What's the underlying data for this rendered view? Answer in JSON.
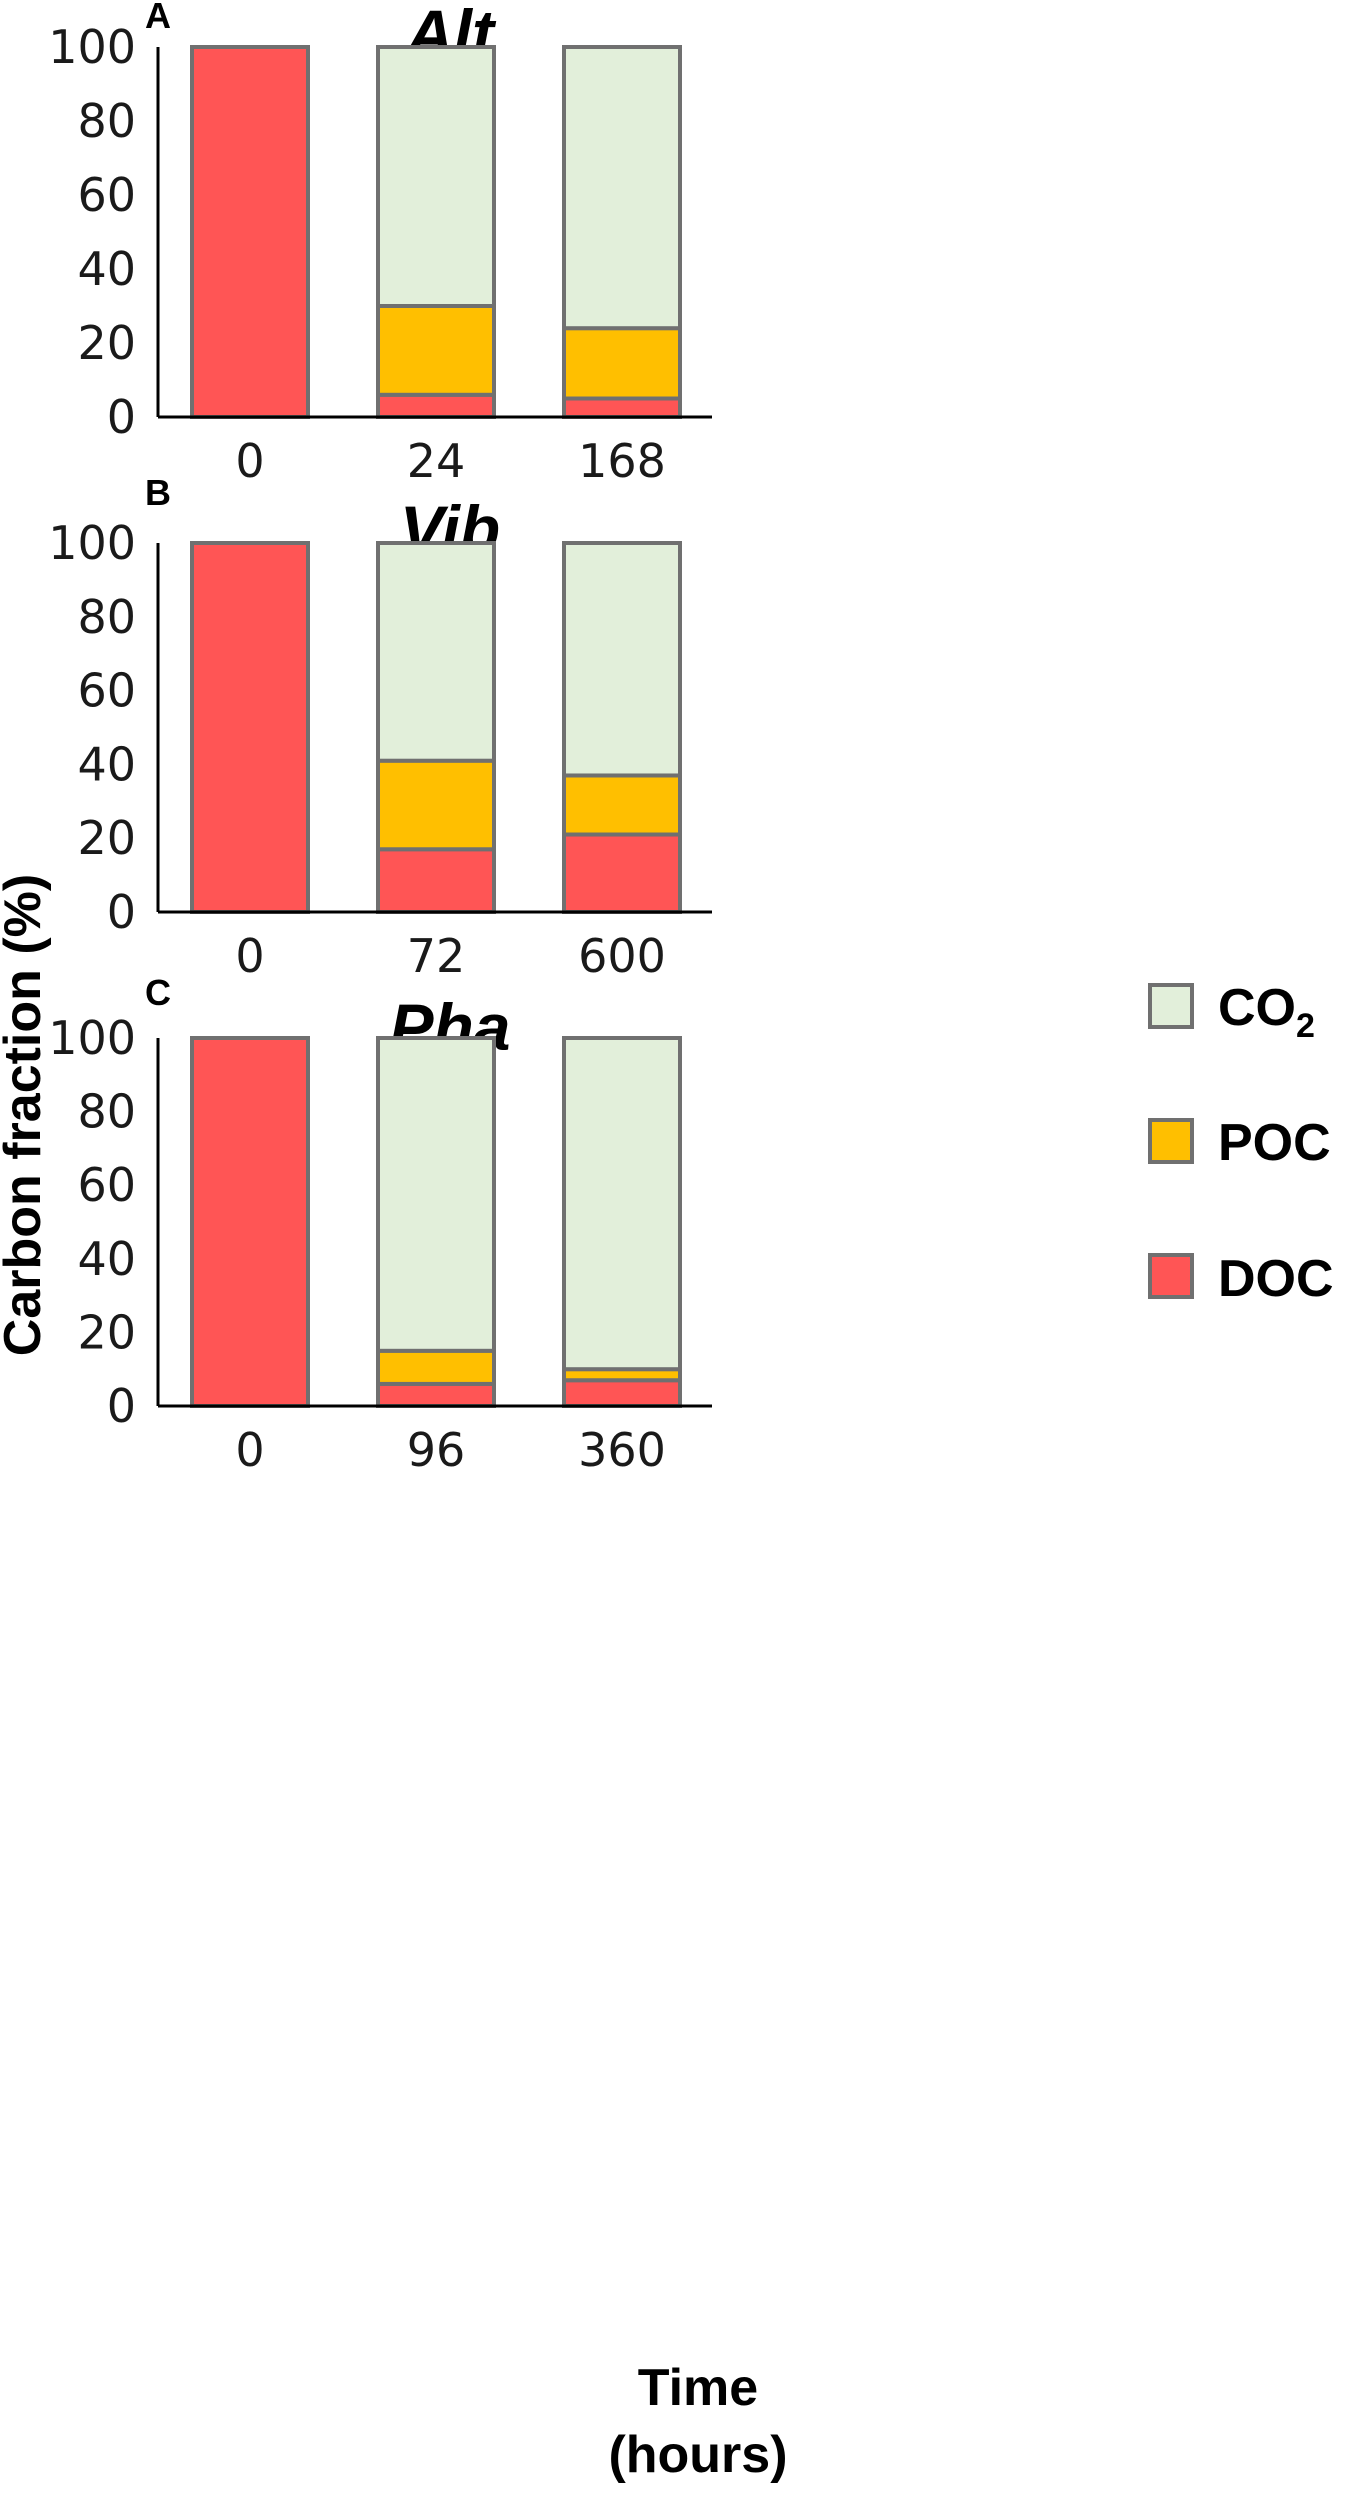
{
  "chart_data": [
    {
      "type": "bar",
      "stacked": true,
      "panel": "A",
      "title": "Alt",
      "categories": [
        "0",
        "24",
        "168"
      ],
      "series": [
        {
          "name": "DOC",
          "values": [
            100,
            6,
            5
          ]
        },
        {
          "name": "POC",
          "values": [
            0,
            24,
            19
          ]
        },
        {
          "name": "CO2",
          "values": [
            0,
            70,
            76
          ]
        }
      ],
      "yticks": [
        "0",
        "20",
        "40",
        "60",
        "80",
        "100"
      ],
      "ylim": [
        0,
        100
      ]
    },
    {
      "type": "bar",
      "stacked": true,
      "panel": "B",
      "title": "Vib",
      "categories": [
        "0",
        "72",
        "600"
      ],
      "series": [
        {
          "name": "DOC",
          "values": [
            100,
            17,
            21
          ]
        },
        {
          "name": "POC",
          "values": [
            0,
            24,
            16
          ]
        },
        {
          "name": "CO2",
          "values": [
            0,
            59,
            63
          ]
        }
      ],
      "yticks": [
        "0",
        "20",
        "40",
        "60",
        "80",
        "100"
      ],
      "ylim": [
        0,
        100
      ]
    },
    {
      "type": "bar",
      "stacked": true,
      "panel": "C",
      "title": "Pha",
      "categories": [
        "0",
        "96",
        "360"
      ],
      "series": [
        {
          "name": "DOC",
          "values": [
            100,
            6,
            7
          ]
        },
        {
          "name": "POC",
          "values": [
            0,
            9,
            3
          ]
        },
        {
          "name": "CO2",
          "values": [
            0,
            85,
            90
          ]
        }
      ],
      "yticks": [
        "0",
        "20",
        "40",
        "60",
        "80",
        "100"
      ],
      "ylim": [
        0,
        100
      ]
    }
  ],
  "ylabel": "Carbon fraction (%)",
  "xlabel_line1": "Time",
  "xlabel_line2": "(hours)",
  "legend": {
    "position": "right",
    "items": [
      {
        "key": "CO2",
        "label_main": "CO",
        "label_sub": "2"
      },
      {
        "key": "POC",
        "label_main": "POC",
        "label_sub": ""
      },
      {
        "key": "DOC",
        "label_main": "DOC",
        "label_sub": ""
      }
    ]
  },
  "colors": {
    "DOC": "#ff5555",
    "POC": "#ffbf00",
    "CO2": "#e2efda",
    "outline": "#707070"
  }
}
